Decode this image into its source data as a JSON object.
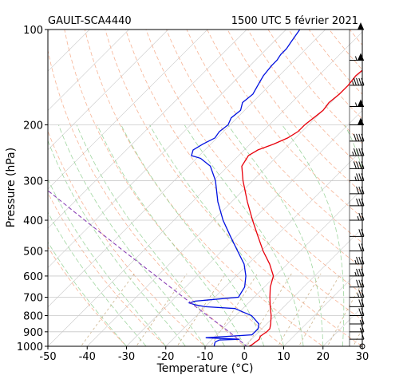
{
  "chart_data": {
    "type": "line",
    "subtype": "skew-t",
    "station_label": "GAULT-SCA4440",
    "time_label": "1500 UTC 5 février 2021",
    "xlabel": "Temperature (°C)",
    "ylabel": "Pressure (hPa)",
    "xlim": [
      -50,
      30
    ],
    "ylim": [
      1000,
      100
    ],
    "y_scale": "log",
    "x_ticks": [
      "-50",
      "-40",
      "-30",
      "-20",
      "-10",
      "0",
      "10",
      "20",
      "30"
    ],
    "y_ticks": [
      "100",
      "200",
      "300",
      "400",
      "500",
      "600",
      "700",
      "800",
      "900",
      "1000"
    ],
    "grid": true,
    "colors": {
      "temperature": "#e8000b",
      "dewpoint": "#0010e0",
      "parcel": "#8a3fb5",
      "dry_adiabat": "#f5a07a",
      "moist_adiabat": "#8fcf8f",
      "mixing_ratio": "#c4a77a",
      "isotherm": "#999999",
      "wind_barb": "#000000"
    },
    "series": [
      {
        "name": "",
        "role": "temperature",
        "points": [
          [
            1005,
            1.0
          ],
          [
            990,
            1.5
          ],
          [
            950,
            2.0
          ],
          [
            930,
            1.5
          ],
          [
            900,
            2.0
          ],
          [
            880,
            2.0
          ],
          [
            850,
            1.0
          ],
          [
            800,
            -1.0
          ],
          [
            750,
            -3.5
          ],
          [
            700,
            -6.0
          ],
          [
            650,
            -8.5
          ],
          [
            600,
            -10.5
          ],
          [
            550,
            -14.5
          ],
          [
            500,
            -19.5
          ],
          [
            450,
            -24.5
          ],
          [
            400,
            -30.0
          ],
          [
            350,
            -36.0
          ],
          [
            300,
            -42.5
          ],
          [
            270,
            -46.5
          ],
          [
            250,
            -47.5
          ],
          [
            240,
            -46.5
          ],
          [
            230,
            -44.0
          ],
          [
            220,
            -42.0
          ],
          [
            210,
            -41.0
          ],
          [
            200,
            -41.0
          ],
          [
            190,
            -40.5
          ],
          [
            180,
            -40.0
          ],
          [
            170,
            -40.5
          ],
          [
            160,
            -40.0
          ],
          [
            150,
            -40.0
          ],
          [
            140,
            -40.5
          ],
          [
            130,
            -40.0
          ],
          [
            125,
            -39.0
          ],
          [
            120,
            -38.0
          ],
          [
            115,
            -38.5
          ],
          [
            110,
            -38.0
          ],
          [
            105,
            -37.0
          ],
          [
            100,
            -36.5
          ]
        ]
      },
      {
        "name": "",
        "role": "dewpoint",
        "points": [
          [
            1005,
            -7.5
          ],
          [
            990,
            -8.0
          ],
          [
            970,
            -8.5
          ],
          [
            955,
            -8.0
          ],
          [
            950,
            -3.0
          ],
          [
            940,
            -12.0
          ],
          [
            920,
            -1.0
          ],
          [
            900,
            -1.0
          ],
          [
            880,
            -1.0
          ],
          [
            850,
            -2.0
          ],
          [
            800,
            -6.0
          ],
          [
            780,
            -9.0
          ],
          [
            760,
            -12.0
          ],
          [
            750,
            -20.0
          ],
          [
            740,
            -23.0
          ],
          [
            730,
            -25.0
          ],
          [
            720,
            -24.0
          ],
          [
            700,
            -14.0
          ],
          [
            650,
            -15.0
          ],
          [
            600,
            -17.5
          ],
          [
            550,
            -21.0
          ],
          [
            500,
            -26.0
          ],
          [
            450,
            -31.5
          ],
          [
            400,
            -37.5
          ],
          [
            350,
            -43.5
          ],
          [
            300,
            -49.5
          ],
          [
            270,
            -54.5
          ],
          [
            255,
            -59.0
          ],
          [
            250,
            -62.0
          ],
          [
            240,
            -63.0
          ],
          [
            230,
            -62.0
          ],
          [
            220,
            -60.5
          ],
          [
            210,
            -61.0
          ],
          [
            200,
            -60.5
          ],
          [
            190,
            -61.5
          ],
          [
            180,
            -61.0
          ],
          [
            170,
            -62.5
          ],
          [
            160,
            -62.0
          ],
          [
            150,
            -63.0
          ],
          [
            140,
            -64.0
          ],
          [
            130,
            -64.5
          ],
          [
            125,
            -64.5
          ],
          [
            120,
            -65.0
          ],
          [
            115,
            -65.0
          ],
          [
            110,
            -65.5
          ],
          [
            105,
            -66.0
          ],
          [
            100,
            -66.5
          ]
        ]
      },
      {
        "name": "",
        "role": "parcel",
        "dashed": true,
        "points": [
          [
            1005,
            1.0
          ],
          [
            900,
            -7.6
          ],
          [
            800,
            -17.2
          ],
          [
            700,
            -28.0
          ],
          [
            600,
            -40.4
          ],
          [
            500,
            -55.0
          ],
          [
            400,
            -72.7
          ],
          [
            300,
            -95.3
          ],
          [
            200,
            -127.0
          ],
          [
            150,
            -149.0
          ],
          [
            130,
            -159.5
          ]
        ]
      }
    ],
    "wind_barbs": [
      {
        "p": 100,
        "speed_kt": 50
      },
      {
        "p": 125,
        "speed_kt": 55
      },
      {
        "p": 150,
        "speed_kt": 45
      },
      {
        "p": 175,
        "speed_kt": 55
      },
      {
        "p": 200,
        "speed_kt": 50
      },
      {
        "p": 225,
        "speed_kt": 40
      },
      {
        "p": 250,
        "speed_kt": 45
      },
      {
        "p": 275,
        "speed_kt": 40
      },
      {
        "p": 300,
        "speed_kt": 35
      },
      {
        "p": 330,
        "speed_kt": 30
      },
      {
        "p": 360,
        "speed_kt": 30
      },
      {
        "p": 400,
        "speed_kt": 25
      },
      {
        "p": 450,
        "speed_kt": 20
      },
      {
        "p": 500,
        "speed_kt": 20
      },
      {
        "p": 550,
        "speed_kt": 35
      },
      {
        "p": 600,
        "speed_kt": 35
      },
      {
        "p": 650,
        "speed_kt": 30
      },
      {
        "p": 700,
        "speed_kt": 25
      },
      {
        "p": 750,
        "speed_kt": 20
      },
      {
        "p": 800,
        "speed_kt": 20
      },
      {
        "p": 850,
        "speed_kt": 15
      },
      {
        "p": 900,
        "speed_kt": 15
      },
      {
        "p": 950,
        "speed_kt": 10
      },
      {
        "p": 1000,
        "speed_kt": 0
      }
    ]
  }
}
